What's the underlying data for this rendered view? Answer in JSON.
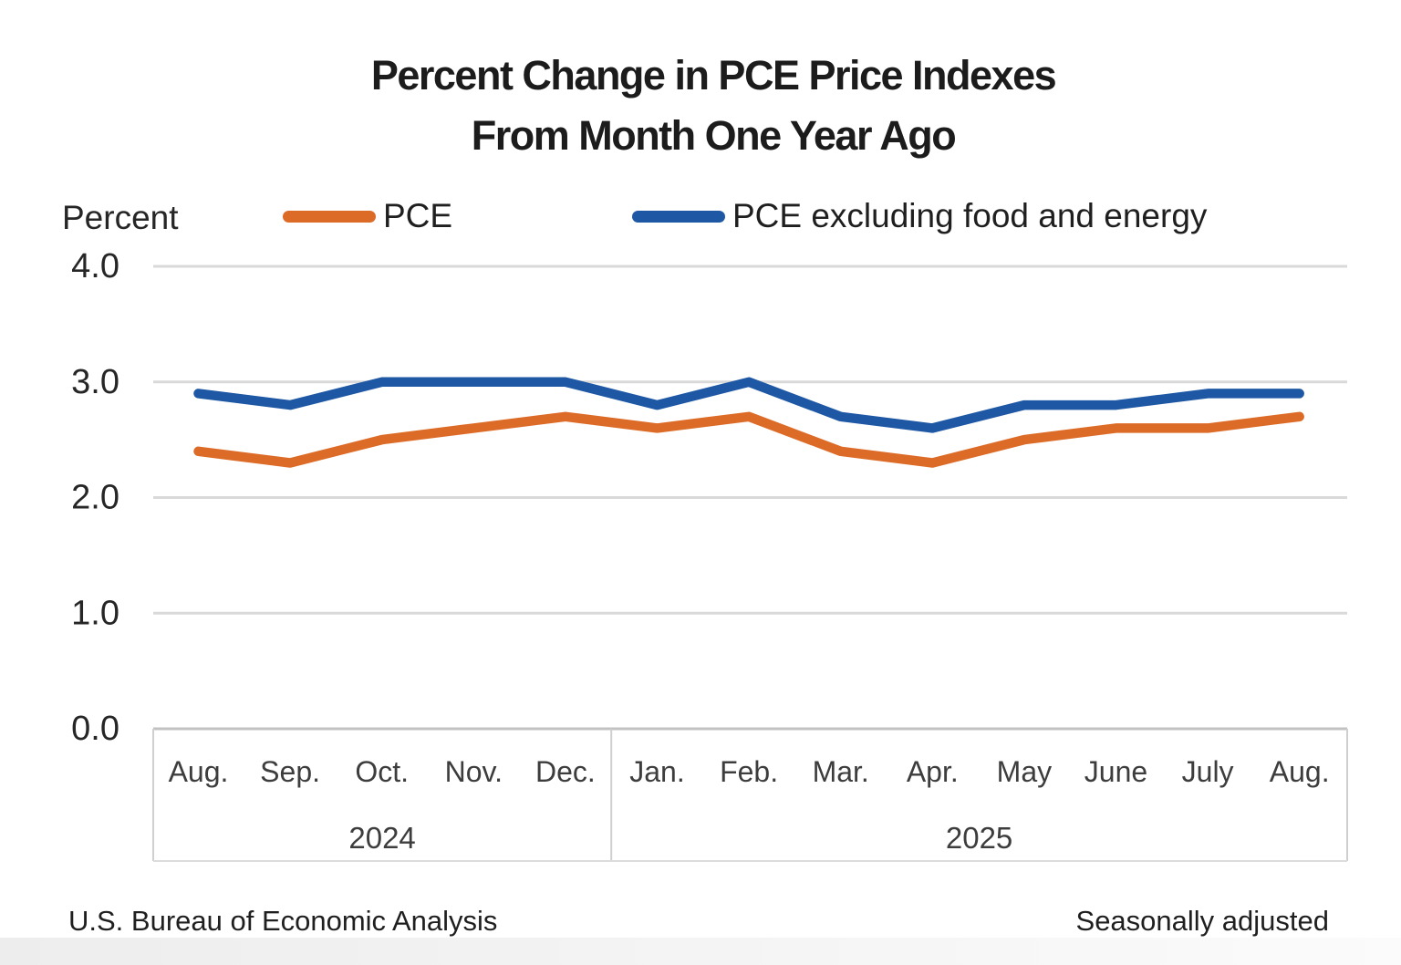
{
  "title": {
    "line1": "Percent Change in PCE Price Indexes",
    "line2": "From Month One Year Ago"
  },
  "legend": [
    {
      "label": "PCE",
      "color": "#DD6B28"
    },
    {
      "label": "PCE excluding food and energy",
      "color": "#1E58A5"
    }
  ],
  "footer": {
    "left": "U.S. Bureau of Economic Analysis",
    "right": "Seasonally adjusted"
  },
  "chart_data": {
    "type": "line",
    "title": "Percent Change in PCE Price Indexes From Month One Year Ago",
    "ylabel": "Percent",
    "xlabel": "",
    "ylim": [
      0.0,
      4.0
    ],
    "grid": true,
    "legend_position": "top",
    "yticks": [
      {
        "label": "4.0",
        "value": 4.0
      },
      {
        "label": "3.0",
        "value": 3.0
      },
      {
        "label": "2.0",
        "value": 2.0
      },
      {
        "label": "1.0",
        "value": 1.0
      },
      {
        "label": "0.0",
        "value": 0.0
      }
    ],
    "categories": [
      "Aug.",
      "Sep.",
      "Oct.",
      "Nov.",
      "Dec.",
      "Jan.",
      "Feb.",
      "Mar.",
      "Apr.",
      "May",
      "June",
      "July",
      "Aug."
    ],
    "year_groups": [
      {
        "label": "2024",
        "months": 5
      },
      {
        "label": "2025",
        "months": 8
      }
    ],
    "series": [
      {
        "name": "PCE",
        "color": "#DD6B28",
        "values": [
          2.4,
          2.3,
          2.5,
          2.6,
          2.7,
          2.6,
          2.7,
          2.4,
          2.3,
          2.5,
          2.6,
          2.6,
          2.7
        ]
      },
      {
        "name": "PCE excluding food and energy",
        "color": "#1E58A5",
        "values": [
          2.9,
          2.8,
          3.0,
          3.0,
          3.0,
          2.8,
          3.0,
          2.7,
          2.6,
          2.8,
          2.8,
          2.9,
          2.9
        ]
      }
    ],
    "note": "Seasonally adjusted",
    "source": "U.S. Bureau of Economic Analysis"
  }
}
